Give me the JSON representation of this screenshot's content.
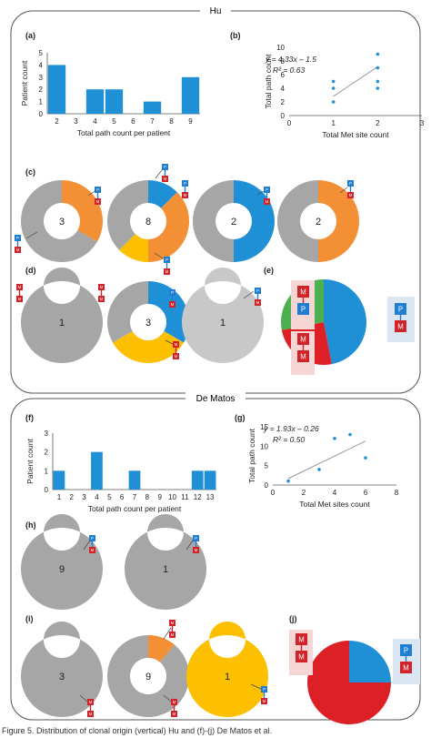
{
  "cohorts": {
    "top": "Hu",
    "bottom": "De Matos"
  },
  "panel_labels": [
    "(a)",
    "(b)",
    "(c)",
    "(d)",
    "(e)",
    "(f)",
    "(g)",
    "(h)",
    "(i)",
    "(j)"
  ],
  "caption": "Figure 5.  Distribution of clonal origin (vertical) Hu and (f)-(j) De Matos et al.",
  "colors": {
    "blue": "#1f8fd6",
    "orange": "#f39035",
    "yellow": "#fcc000",
    "gray": "#a6a6a6",
    "lightgray": "#c8c8c8",
    "green": "#4caf50",
    "red": "#dd1f26",
    "badge_blue": "#1f7ed1",
    "badge_red": "#d2232a"
  },
  "chart_data": [
    {
      "id": "a",
      "type": "bar",
      "xlabel": "Total path count per patient",
      "ylabel": "Patient count",
      "categories": [
        "2",
        "3",
        "4",
        "5",
        "6",
        "7",
        "8",
        "9"
      ],
      "values": [
        4,
        0,
        2,
        2,
        0,
        1,
        0,
        3
      ],
      "ylim": [
        0,
        5
      ],
      "yticks": [
        "0",
        "1",
        "2",
        "3",
        "4",
        "5"
      ]
    },
    {
      "id": "b",
      "type": "scatter",
      "xlabel": "Total Met site count",
      "ylabel": "Total path count",
      "equation": "y = 4.33x – 1.5",
      "r2": "R² = 0.63",
      "points": [
        [
          1,
          2
        ],
        [
          1,
          4
        ],
        [
          1,
          5
        ],
        [
          2,
          4
        ],
        [
          2,
          5
        ],
        [
          2,
          7
        ],
        [
          2,
          9
        ]
      ],
      "trend": {
        "slope": 4.33,
        "intercept": -1.5
      },
      "xlim": [
        0,
        3
      ],
      "ylim": [
        0,
        10
      ],
      "xticks": [
        "0",
        "1",
        "2",
        "3"
      ],
      "yticks": [
        "0",
        "2",
        "4",
        "6",
        "8",
        "10"
      ]
    },
    {
      "id": "c",
      "type": "pie",
      "subtype": "donut",
      "donuts": [
        {
          "center": "3",
          "slices": [
            {
              "color": "orange",
              "value": 1
            },
            {
              "color": "gray",
              "value": 2
            }
          ]
        },
        {
          "center": "8",
          "slices": [
            {
              "color": "blue",
              "value": 1
            },
            {
              "color": "orange",
              "value": 3
            },
            {
              "color": "yellow",
              "value": 1
            },
            {
              "color": "gray",
              "value": 3
            }
          ]
        },
        {
          "center": "2",
          "slices": [
            {
              "color": "blue",
              "value": 1
            },
            {
              "color": "gray",
              "value": 1
            }
          ]
        },
        {
          "center": "2",
          "slices": [
            {
              "color": "orange",
              "value": 1
            },
            {
              "color": "gray",
              "value": 1
            }
          ]
        }
      ]
    },
    {
      "id": "d",
      "type": "pie",
      "subtype": "donut",
      "donuts": [
        {
          "center": "1",
          "slices": [
            {
              "color": "gray",
              "value": 1
            }
          ]
        },
        {
          "center": "3",
          "slices": [
            {
              "color": "blue",
              "value": 1
            },
            {
              "color": "yellow",
              "value": 1
            },
            {
              "color": "gray",
              "value": 1
            }
          ]
        },
        {
          "center": "1",
          "slices": [
            {
              "color": "lightgray",
              "value": 1
            }
          ]
        }
      ]
    },
    {
      "id": "e",
      "type": "pie",
      "slices": [
        {
          "color": "blue",
          "value": 47
        },
        {
          "color": "red",
          "value": 25
        },
        {
          "color": "green",
          "value": 28
        }
      ]
    },
    {
      "id": "f",
      "type": "bar",
      "xlabel": "Total path count per patient",
      "ylabel": "Patient count",
      "categories": [
        "1",
        "2",
        "3",
        "4",
        "5",
        "6",
        "7",
        "8",
        "9",
        "10",
        "11",
        "12",
        "13"
      ],
      "values": [
        1,
        0,
        0,
        2,
        0,
        0,
        1,
        0,
        0,
        0,
        0,
        1,
        1
      ],
      "ylim": [
        0,
        3
      ],
      "yticks": [
        "0",
        "1",
        "2",
        "3"
      ]
    },
    {
      "id": "g",
      "type": "scatter",
      "xlabel": "Total Met sites count",
      "ylabel": "Total path count",
      "equation": "y = 1.93x – 0.26",
      "r2": "R² = 0.50",
      "points": [
        [
          1,
          1
        ],
        [
          3,
          4
        ],
        [
          4,
          12
        ],
        [
          5,
          13
        ],
        [
          6,
          7
        ]
      ],
      "trend": {
        "slope": 1.93,
        "intercept": -0.26,
        "x0": 1,
        "x1": 6
      },
      "xlim": [
        0,
        8
      ],
      "ylim": [
        0,
        15
      ],
      "xticks": [
        "0",
        "2",
        "4",
        "6",
        "8"
      ],
      "yticks": [
        "0",
        "5",
        "10",
        "15"
      ]
    },
    {
      "id": "h",
      "type": "pie",
      "subtype": "donut",
      "donuts": [
        {
          "center": "9",
          "slices": [
            {
              "color": "gray",
              "value": 1
            }
          ]
        },
        {
          "center": "1",
          "slices": [
            {
              "color": "gray",
              "value": 1
            }
          ]
        }
      ]
    },
    {
      "id": "i",
      "type": "pie",
      "subtype": "donut",
      "donuts": [
        {
          "center": "3",
          "slices": [
            {
              "color": "gray",
              "value": 1
            }
          ]
        },
        {
          "center": "9",
          "slices": [
            {
              "color": "orange",
              "value": 1
            },
            {
              "color": "gray",
              "value": 8
            }
          ]
        },
        {
          "center": "1",
          "slices": [
            {
              "color": "yellow",
              "value": 1
            }
          ]
        }
      ]
    },
    {
      "id": "j",
      "type": "pie",
      "slices": [
        {
          "color": "blue",
          "value": 25
        },
        {
          "color": "red",
          "value": 75
        }
      ]
    }
  ],
  "badge_text": {
    "P": "P",
    "M": "M"
  }
}
